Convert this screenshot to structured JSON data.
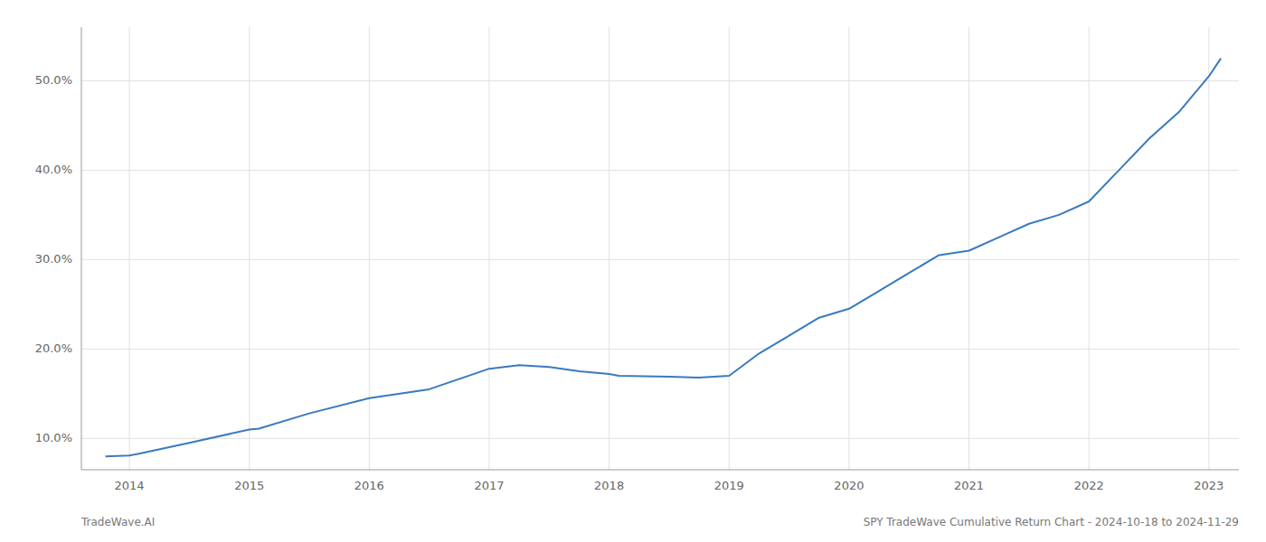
{
  "chart_data": {
    "type": "line",
    "x": [
      2013.8,
      2014.0,
      2014.08,
      2014.5,
      2015.0,
      2015.08,
      2015.5,
      2016.0,
      2016.5,
      2017.0,
      2017.25,
      2017.5,
      2017.75,
      2018.0,
      2018.08,
      2018.5,
      2018.75,
      2019.0,
      2019.25,
      2019.5,
      2019.75,
      2020.0,
      2020.25,
      2020.5,
      2020.75,
      2021.0,
      2021.25,
      2021.5,
      2021.75,
      2022.0,
      2022.25,
      2022.5,
      2022.75,
      2023.0,
      2023.1
    ],
    "values": [
      8.0,
      8.1,
      8.3,
      9.5,
      11.0,
      11.1,
      12.8,
      14.5,
      15.5,
      17.8,
      18.2,
      18.0,
      17.5,
      17.2,
      17.0,
      16.9,
      16.8,
      17.0,
      19.5,
      21.5,
      23.5,
      24.5,
      26.5,
      28.5,
      30.5,
      31.0,
      32.5,
      34.0,
      35.0,
      36.5,
      40.0,
      43.5,
      46.5,
      50.5,
      52.5
    ],
    "color": "#3a7abf",
    "xlim": [
      2013.6,
      2023.25
    ],
    "xticks": [
      2014,
      2015,
      2016,
      2017,
      2018,
      2019,
      2020,
      2021,
      2022,
      2023
    ],
    "ylim": [
      6.5,
      56
    ],
    "yticks": [
      {
        "value": 10,
        "label": "10.0%"
      },
      {
        "value": 20,
        "label": "20.0%"
      },
      {
        "value": 30,
        "label": "30.0%"
      },
      {
        "value": 40,
        "label": "40.0%"
      },
      {
        "value": 50,
        "label": "50.0%"
      }
    ],
    "grid": true,
    "annotations": [
      "TradeWave.AI",
      "SPY TradeWave Cumulative Return Chart - 2024-10-18 to 2024-11-29"
    ]
  }
}
